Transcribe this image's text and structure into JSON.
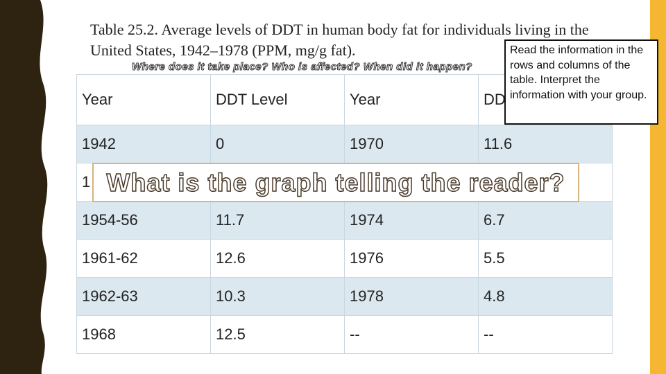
{
  "title": "Table 25.2. Average levels of DDT in human body fat for individuals living in the United States, 1942–1978 (PPM, mg/g fat).",
  "subtitle": "Where does it take place? Who is affected? When did it happen?",
  "table": {
    "header": [
      "Year",
      "DDT Level",
      "Year",
      "DDT Level"
    ],
    "rows": [
      [
        "1942",
        "0",
        "1970",
        "11.6"
      ],
      [
        "1"
      ],
      [
        "1954-56",
        "11.7",
        "1974",
        "6.7"
      ],
      [
        "1961-62",
        "12.6",
        "1976",
        "5.5"
      ],
      [
        "1962-63",
        "10.3",
        "1978",
        "4.8"
      ],
      [
        "1968",
        "12.5",
        "--",
        "--"
      ]
    ]
  },
  "callout": "Read the information in the rows and columns of the table. Interpret the information with your group.",
  "question": "What is the graph telling the reader?"
}
